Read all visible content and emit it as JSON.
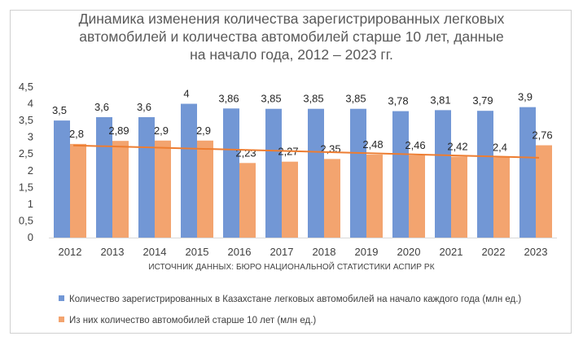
{
  "chart_data": {
    "type": "bar",
    "title": "Динамика изменения количества зарегистрированных легковых автомобилей и количества автомобилей старше 10 лет, данные на начало года, 2012 – 2023 гг.",
    "title_lines": [
      "Динамика изменения количества зарегистрированных легковых",
      "автомобилей и количества автомобилей старше 10 лет, данные",
      "на начало года, 2012 – 2023 гг."
    ],
    "categories": [
      "2012",
      "2013",
      "2014",
      "2015",
      "2016",
      "2017",
      "2018",
      "2019",
      "2020",
      "2021",
      "2022",
      "2023"
    ],
    "series": [
      {
        "name": "Количество зарегистрированных в Казахстане легковых автомобилей на начало каждого года (млн ед.)",
        "color": "#7297d5",
        "values": [
          3.5,
          3.6,
          3.6,
          4,
          3.86,
          3.85,
          3.85,
          3.85,
          3.78,
          3.81,
          3.79,
          3.9
        ],
        "labels": [
          "3,5",
          "3,6",
          "3,6",
          "4",
          "3,86",
          "3,85",
          "3,85",
          "3,85",
          "3,78",
          "3,81",
          "3,79",
          "3,9"
        ]
      },
      {
        "name": "Из них количество автомобилей старше 10 лет (млн ед.)",
        "color": "#f3a46f",
        "values": [
          2.8,
          2.89,
          2.9,
          2.9,
          2.23,
          2.27,
          2.35,
          2.48,
          2.46,
          2.42,
          2.4,
          2.76
        ],
        "labels": [
          "2,8",
          "2,89",
          "2,9",
          "2,9",
          "2,23",
          "2,27",
          "2,35",
          "2,48",
          "2,46",
          "2,42",
          "2,4",
          "2,76"
        ]
      }
    ],
    "trendline": {
      "series": 1,
      "type": "linear",
      "color": "#ed7d31"
    },
    "yticks": [
      "0",
      "0,5",
      "1",
      "1,5",
      "2",
      "2,5",
      "3",
      "3,5",
      "4",
      "4,5"
    ],
    "ylim": [
      0,
      4.5
    ],
    "grid": false,
    "legend": "bottom",
    "source_note": "ИСТОЧНИК ДАННЫХ: БЮРО НАЦИОНАЛЬНОЙ СТАТИСТИКИ АСПИР РК"
  }
}
